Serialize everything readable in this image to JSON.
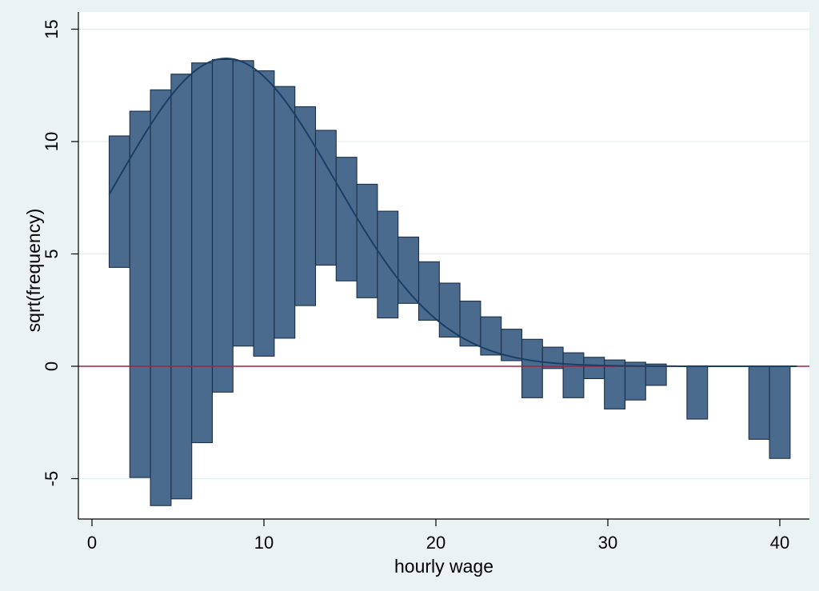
{
  "chart_data": {
    "type": "bar",
    "subtype": "hanging-rootogram",
    "xlabel": "hourly wage",
    "ylabel": "sqrt(frequency)",
    "xlim": [
      0,
      41
    ],
    "ylim": [
      -6.7,
      15.7
    ],
    "x_ticks": [
      0,
      10,
      20,
      30,
      40
    ],
    "y_ticks": [
      -5,
      0,
      5,
      10,
      15
    ],
    "y_tick_labels": [
      "-5",
      "0",
      "5",
      "10",
      "15"
    ],
    "grid": true,
    "bin_width": 1.2,
    "bars": [
      {
        "x0": 1.0,
        "top": 10.25,
        "bottom": 4.4
      },
      {
        "x0": 2.2,
        "top": 11.35,
        "bottom": -4.95
      },
      {
        "x0": 3.4,
        "top": 12.3,
        "bottom": -6.2
      },
      {
        "x0": 4.6,
        "top": 13.0,
        "bottom": -5.9
      },
      {
        "x0": 5.8,
        "top": 13.5,
        "bottom": -3.4
      },
      {
        "x0": 7.0,
        "top": 13.65,
        "bottom": -1.15
      },
      {
        "x0": 8.2,
        "top": 13.6,
        "bottom": 0.9
      },
      {
        "x0": 9.4,
        "top": 13.15,
        "bottom": 0.45
      },
      {
        "x0": 10.6,
        "top": 12.45,
        "bottom": 1.25
      },
      {
        "x0": 11.8,
        "top": 11.55,
        "bottom": 2.7
      },
      {
        "x0": 13.0,
        "top": 10.5,
        "bottom": 4.5
      },
      {
        "x0": 14.2,
        "top": 9.3,
        "bottom": 3.8
      },
      {
        "x0": 15.4,
        "top": 8.1,
        "bottom": 3.05
      },
      {
        "x0": 16.6,
        "top": 6.9,
        "bottom": 2.15
      },
      {
        "x0": 17.8,
        "top": 5.75,
        "bottom": 2.8
      },
      {
        "x0": 19.0,
        "top": 4.65,
        "bottom": 2.05
      },
      {
        "x0": 20.2,
        "top": 3.7,
        "bottom": 1.3
      },
      {
        "x0": 21.4,
        "top": 2.9,
        "bottom": 0.9
      },
      {
        "x0": 22.6,
        "top": 2.2,
        "bottom": 0.5
      },
      {
        "x0": 23.8,
        "top": 1.65,
        "bottom": 0.25
      },
      {
        "x0": 25.0,
        "top": 1.2,
        "bottom": -1.4
      },
      {
        "x0": 26.2,
        "top": 0.85,
        "bottom": -0.1
      },
      {
        "x0": 27.4,
        "top": 0.6,
        "bottom": -1.4
      },
      {
        "x0": 28.6,
        "top": 0.4,
        "bottom": -0.55
      },
      {
        "x0": 29.8,
        "top": 0.28,
        "bottom": -1.9
      },
      {
        "x0": 31.0,
        "top": 0.18,
        "bottom": -1.5
      },
      {
        "x0": 32.2,
        "top": 0.1,
        "bottom": -0.85
      },
      {
        "x0": 34.6,
        "top": 0.02,
        "bottom": -2.35
      },
      {
        "x0": 38.2,
        "top": 0.0,
        "bottom": -3.25
      },
      {
        "x0": 39.4,
        "top": 0.0,
        "bottom": -4.1
      }
    ],
    "fitted_curve": {
      "type": "normal",
      "peak": 13.7,
      "mean": 7.8,
      "sd": 6.3,
      "x_range": [
        1.0,
        41.0
      ]
    },
    "colors": {
      "background": "#eaf2f3",
      "plot_background": "#ffffff",
      "bar_fill": "#4a6a8e",
      "bar_stroke": "#1a2f47",
      "curve": "#1a3f66",
      "zero_line": "#a4213e",
      "grid": "#e3ecee"
    }
  }
}
